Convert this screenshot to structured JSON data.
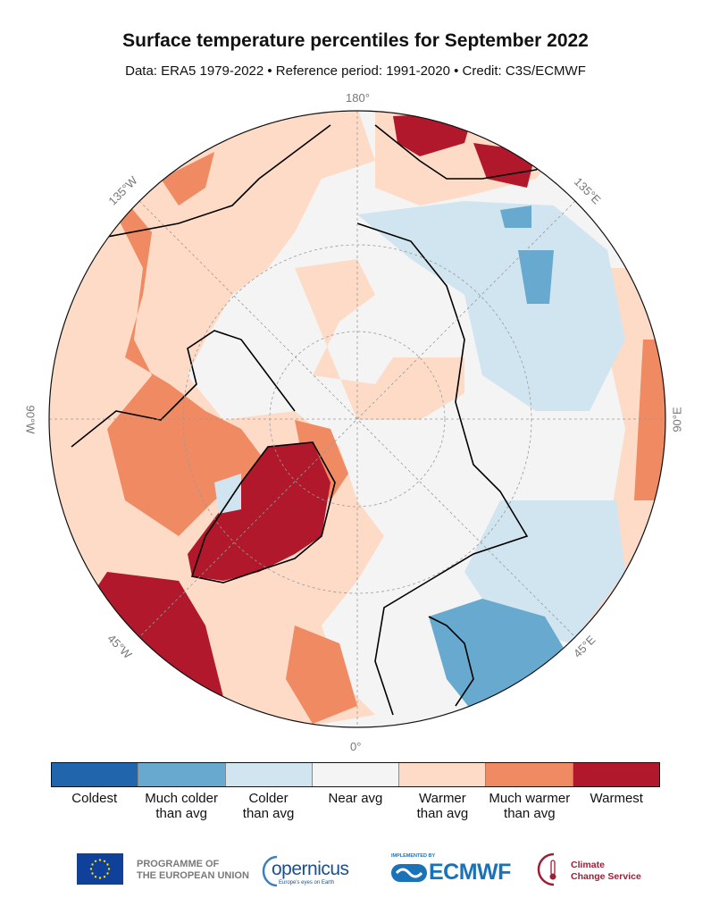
{
  "header": {
    "title": "Surface temperature percentiles for September 2022",
    "subtitle": "Data: ERA5 1979-2022 • Reference period: 1991-2020 • Credit: C3S/ECMWF"
  },
  "map": {
    "projection": "north polar stereographic",
    "longitude_labels": {
      "top": "180°",
      "bottom": "0°",
      "left": "90°W",
      "right": "90°E",
      "upper_left": "135°W",
      "upper_right": "135°E",
      "lower_left": "45°W",
      "lower_right": "45°E"
    }
  },
  "legend": {
    "categories": [
      {
        "label": "Coldest",
        "color": "#2166ac"
      },
      {
        "label": "Much colder than avg",
        "line1": "Much colder",
        "line2": "than avg",
        "color": "#67a9cf"
      },
      {
        "label": "Colder than avg",
        "line1": "Colder",
        "line2": "than avg",
        "color": "#d1e5f0"
      },
      {
        "label": "Near avg",
        "color": "#f4f4f4"
      },
      {
        "label": "Warmer than avg",
        "line1": "Warmer",
        "line2": "than avg",
        "color": "#fddbc7"
      },
      {
        "label": "Much warmer than avg",
        "line1": "Much warmer",
        "line2": "than avg",
        "color": "#ef8a62"
      },
      {
        "label": "Warmest",
        "color": "#b2182b"
      }
    ]
  },
  "footer": {
    "eu_line1": "PROGRAMME OF",
    "eu_line2": "THE EUROPEAN UNION",
    "copernicus": "opernicus",
    "copernicus_tagline": "Europe's eyes on Earth",
    "ecmwf_implemented": "IMPLEMENTED BY",
    "ecmwf": "ECMWF",
    "c3s_line1": "Climate",
    "c3s_line2": "Change Service"
  }
}
